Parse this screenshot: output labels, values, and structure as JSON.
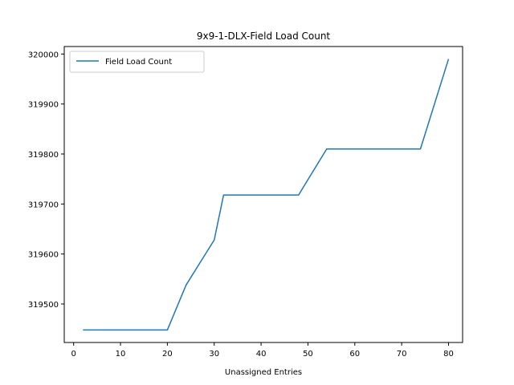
{
  "chart_data": {
    "type": "line",
    "title": "9x9-1-DLX-Field Load Count",
    "xlabel": "Unassigned Entries",
    "ylabel": "",
    "xlim": [
      -2.0,
      83.0
    ],
    "ylim": [
      319423,
      320015
    ],
    "xticks": [
      0,
      10,
      20,
      30,
      40,
      50,
      60,
      70,
      80
    ],
    "yticks": [
      319500,
      319600,
      319700,
      319800,
      319900,
      320000
    ],
    "grid": false,
    "legend": "top-left",
    "series": [
      {
        "name": "Field Load Count",
        "color": "#1f77b4",
        "x": [
          2,
          20,
          24,
          30,
          32,
          48,
          54,
          74,
          80
        ],
        "y": [
          319448,
          319448,
          319538,
          319628,
          319718,
          319718,
          319810,
          319810,
          319990
        ]
      }
    ]
  }
}
